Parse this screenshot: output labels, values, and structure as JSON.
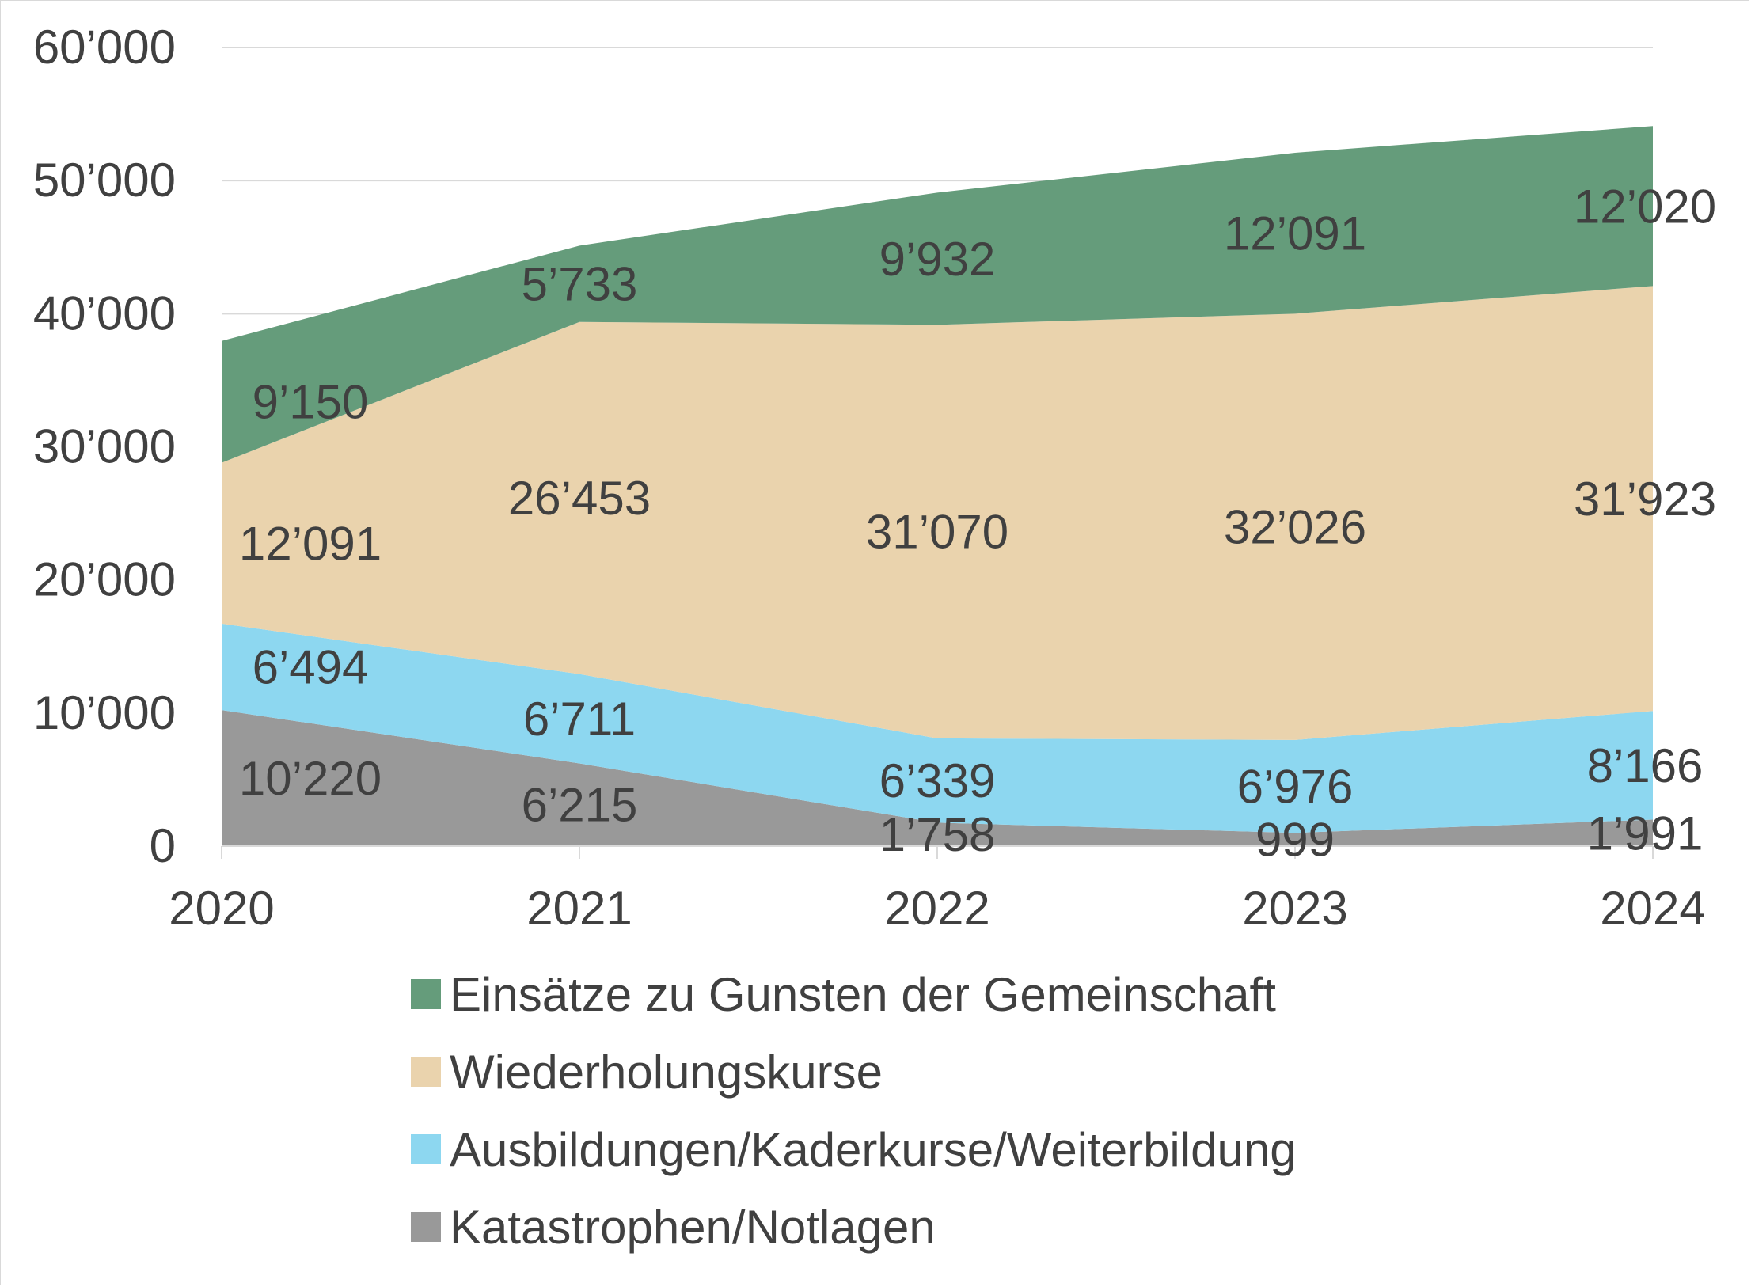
{
  "chart_data": {
    "type": "area",
    "stacked": true,
    "title": "",
    "xlabel": "",
    "ylabel": "",
    "x": [
      "2020",
      "2021",
      "2022",
      "2023",
      "2024"
    ],
    "ylim": [
      0,
      60000
    ],
    "y_ticks": [
      "0",
      "10’000",
      "20’000",
      "30’000",
      "40’000",
      "50’000",
      "60’000"
    ],
    "grid": "horizontal",
    "legend_position": "bottom",
    "series": [
      {
        "name": "Katastrophen/Notlagen",
        "color": "#999999",
        "values": [
          10220,
          6215,
          1758,
          999,
          1991
        ],
        "labels": [
          "10’220",
          "6’215",
          "1’758",
          "999",
          "1’991"
        ]
      },
      {
        "name": "Ausbildungen/Kaderkurse/Weiterbildung",
        "color": "#8dd7f0",
        "values": [
          6494,
          6711,
          6339,
          6976,
          8166
        ],
        "labels": [
          "6’494",
          "6’711",
          "6’339",
          "6’976",
          "8’166"
        ]
      },
      {
        "name": "Wiederholungskurse",
        "color": "#ead3ad",
        "values": [
          12091,
          26453,
          31070,
          32026,
          31923
        ],
        "labels": [
          "12’091",
          "26’453",
          "31’070",
          "32’026",
          "31’923"
        ]
      },
      {
        "name": "Einsätze zu Gunsten der Gemeinschaft",
        "color": "#659c7b",
        "values": [
          9150,
          5733,
          9932,
          12091,
          12020
        ],
        "labels": [
          "9’150",
          "5’733",
          "9’932",
          "12’091",
          "12’020"
        ]
      }
    ]
  }
}
